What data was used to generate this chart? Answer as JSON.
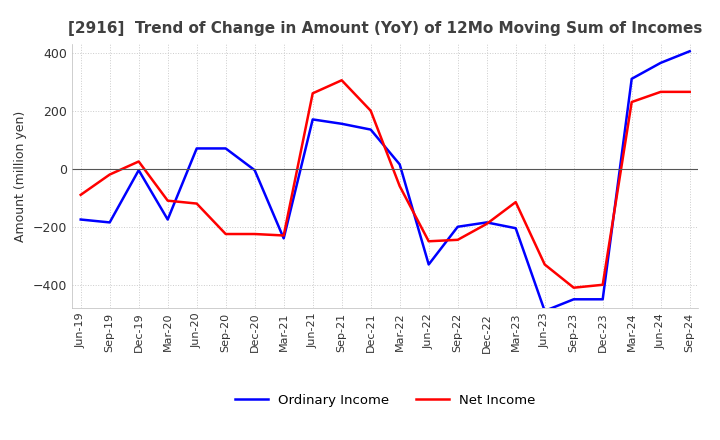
{
  "title": "[2916]  Trend of Change in Amount (YoY) of 12Mo Moving Sum of Incomes",
  "ylabel": "Amount (million yen)",
  "ylim": [
    -480,
    430
  ],
  "yticks": [
    -400,
    -200,
    0,
    200,
    400
  ],
  "x_labels": [
    "Jun-19",
    "Sep-19",
    "Dec-19",
    "Mar-20",
    "Jun-20",
    "Sep-20",
    "Dec-20",
    "Mar-21",
    "Jun-21",
    "Sep-21",
    "Dec-21",
    "Mar-22",
    "Jun-22",
    "Sep-22",
    "Dec-22",
    "Mar-23",
    "Jun-23",
    "Sep-23",
    "Dec-23",
    "Mar-24",
    "Jun-24",
    "Sep-24"
  ],
  "ordinary_income": [
    -175,
    -185,
    -5,
    -175,
    70,
    70,
    -5,
    -240,
    170,
    155,
    135,
    15,
    -330,
    -200,
    -185,
    -205,
    -490,
    -450,
    -450,
    310,
    365,
    405
  ],
  "net_income": [
    -90,
    -20,
    25,
    -110,
    -120,
    -225,
    -225,
    -230,
    260,
    305,
    200,
    -60,
    -250,
    -245,
    -190,
    -115,
    -330,
    -410,
    -400,
    230,
    265,
    265
  ],
  "ordinary_income_color": "#0000FF",
  "net_income_color": "#FF0000",
  "background_color": "#FFFFFF",
  "grid_color": "#CCCCCC",
  "legend_labels": [
    "Ordinary Income",
    "Net Income"
  ],
  "title_color": "#404040"
}
